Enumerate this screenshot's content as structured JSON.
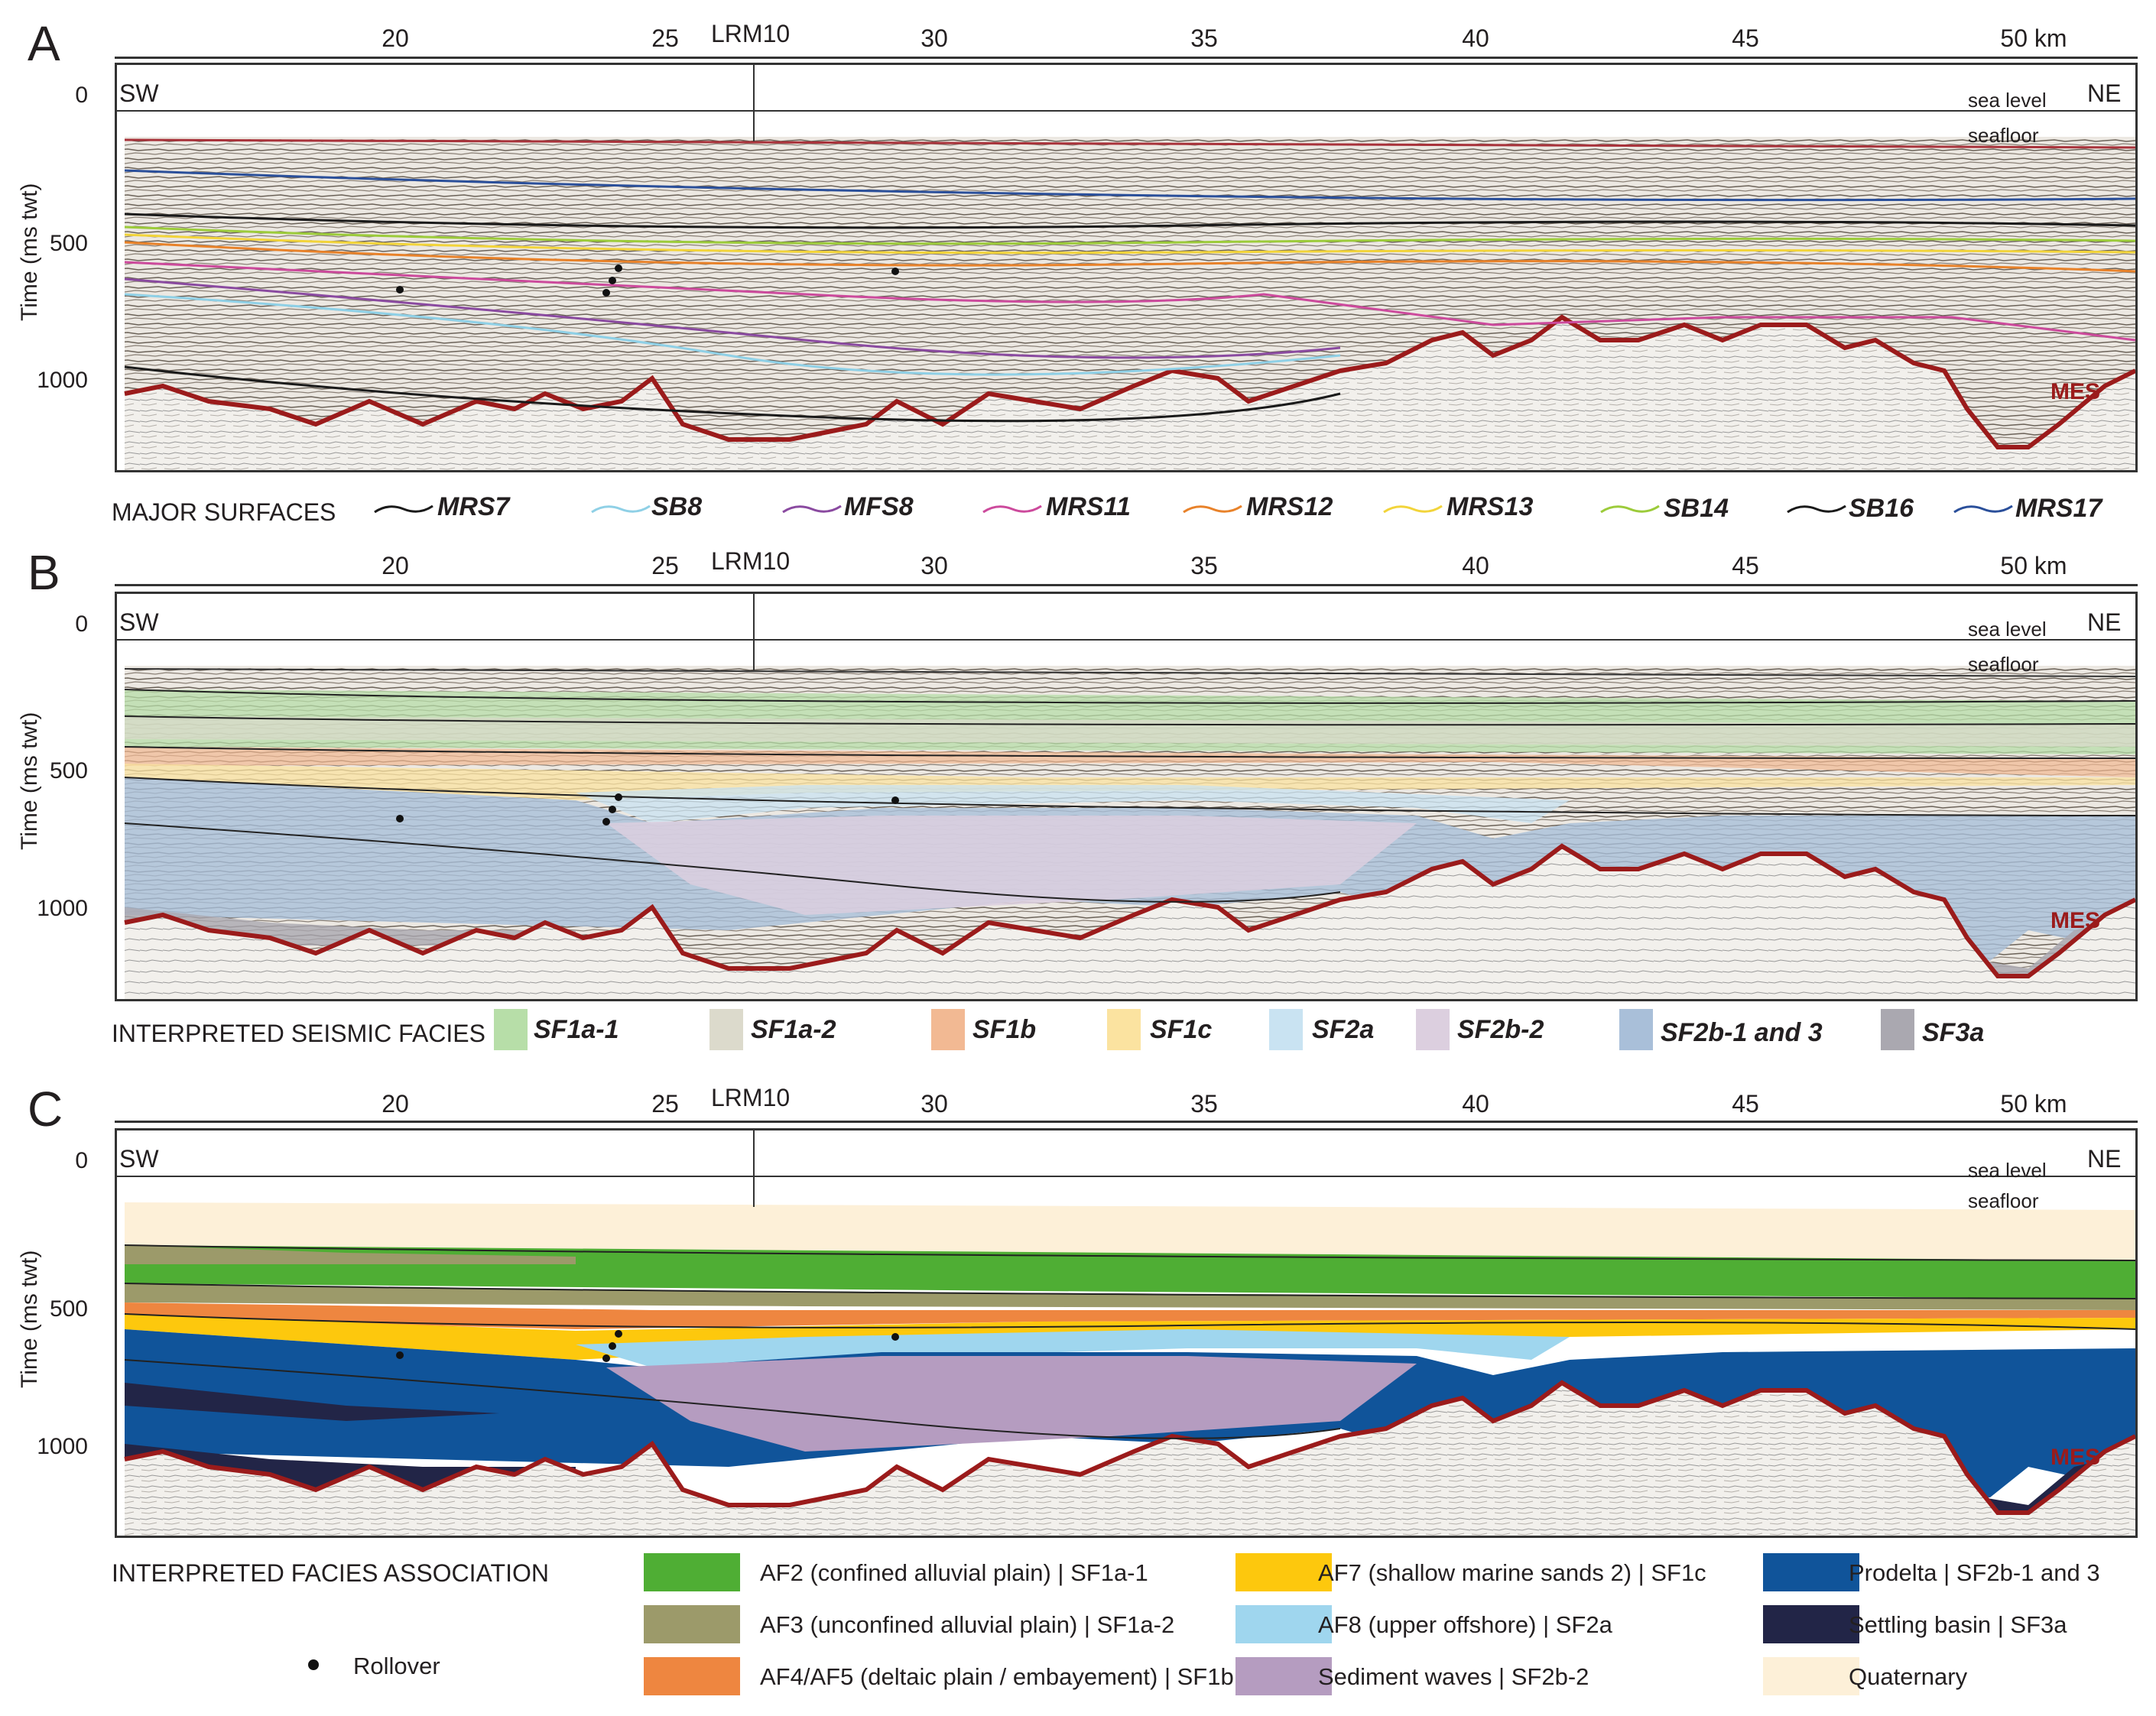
{
  "panels": [
    {
      "letter": "A"
    },
    {
      "letter": "B"
    },
    {
      "letter": "C"
    }
  ],
  "axis": {
    "km_labels": [
      "20",
      "25",
      "30",
      "35",
      "40",
      "45",
      "50 km"
    ],
    "well": "LRM10",
    "time_labels": [
      "0",
      "500",
      "1000"
    ],
    "y_title": "Time (ms twt)",
    "sw": "SW",
    "ne": "NE",
    "sea_level": "sea level",
    "seafloor": "seafloor",
    "mes": "MES"
  },
  "surfaces": {
    "title": "MAJOR SURFACES",
    "items": [
      {
        "label": "MRS7",
        "color": "#1a1a1a"
      },
      {
        "label": "SB8",
        "color": "#8fd0e6"
      },
      {
        "label": "MFS8",
        "color": "#8a4aa0"
      },
      {
        "label": "MRS11",
        "color": "#cc4a9c"
      },
      {
        "label": "MRS12",
        "color": "#e8822a"
      },
      {
        "label": "MRS13",
        "color": "#f2d43a"
      },
      {
        "label": "SB14",
        "color": "#9ccb3a"
      },
      {
        "label": "SB16",
        "color": "#1a1a1a"
      },
      {
        "label": "MRS17",
        "color": "#2a4f9a"
      }
    ]
  },
  "seismic_facies": {
    "title": "INTERPRETED SEISMIC FACIES",
    "items": [
      {
        "label": "SF1a-1",
        "color": "#b7dea8"
      },
      {
        "label": "SF1a-2",
        "color": "#dcdacc"
      },
      {
        "label": "SF1b",
        "color": "#f2b993"
      },
      {
        "label": "SF1c",
        "color": "#fbe3a0"
      },
      {
        "label": "SF2a",
        "color": "#c9e3f2"
      },
      {
        "label": "SF2b-2",
        "color": "#dccfdf"
      },
      {
        "label": "SF2b-1 and 3",
        "color": "#a9bfd9"
      },
      {
        "label": "SF3a",
        "color": "#aaa8b0"
      }
    ]
  },
  "facies_association": {
    "title": "INTERPRETED FACIES ASSOCIATION",
    "rollover": "Rollover",
    "items": [
      {
        "label": "AF2 (confined alluvial plain) | SF1a-1",
        "color": "#4fae34"
      },
      {
        "label": "AF3 (unconfined alluvial plain) | SF1a-2",
        "color": "#9c9a6a"
      },
      {
        "label": "AF4/AF5 (deltaic plain / embayement) | SF1b",
        "color": "#ee8640"
      },
      {
        "label": "AF7 (shallow marine sands 2) | SF1c",
        "color": "#fdc80d"
      },
      {
        "label": "AF8 (upper offshore) | SF2a",
        "color": "#9fd6ee"
      },
      {
        "label": "Sediment waves | SF2b-2",
        "color": "#b59cc0"
      },
      {
        "label": "Prodelta | SF2b-1 and 3",
        "color": "#10549a"
      },
      {
        "label": "Settling basin | SF3a",
        "color": "#222547"
      },
      {
        "label": "Quaternary",
        "color": "#fdf0d8"
      }
    ]
  }
}
